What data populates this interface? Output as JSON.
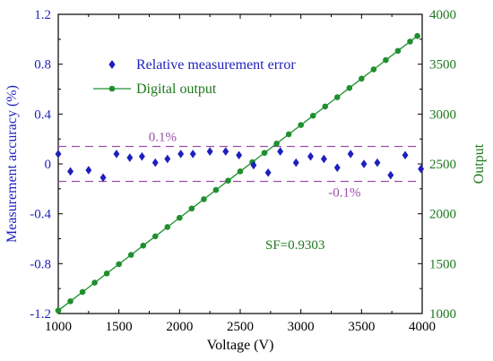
{
  "chart_data": {
    "type": "scatter",
    "xlabel": "Voltage (V)",
    "ylabel_left": "Measurement accuracy (%)",
    "ylabel_right": "Output",
    "xlim": [
      1000,
      4000
    ],
    "ylim_left": [
      -1.2,
      1.2
    ],
    "ylim_right": [
      1000,
      4000
    ],
    "x_ticks": [
      1000,
      1500,
      2000,
      2500,
      3000,
      3500,
      4000
    ],
    "y_left_ticks": [
      -1.2,
      -0.8,
      -0.4,
      0,
      0.4,
      0.8,
      1.2
    ],
    "y_left_tick_labels": [
      "-1.2",
      "-0.8",
      "-0.4",
      "0",
      "0.4",
      "0.8",
      "1.2"
    ],
    "y_right_ticks": [
      1000,
      1500,
      2000,
      2500,
      3000,
      3500,
      4000
    ],
    "colors": {
      "left_axis": "#1f1fbf",
      "right_axis": "#1e7a1e",
      "marker_error": "#1f1fbf",
      "line_output": "#1f8f2f",
      "threshold": "#9b4fa8"
    },
    "legend": {
      "placement": "top-left",
      "entries": [
        {
          "label": "Relative measurement error",
          "marker": "diamond"
        },
        {
          "label": "Digital output",
          "marker": "line-dot"
        }
      ]
    },
    "series": [
      {
        "name": "Relative measurement error",
        "axis": "left",
        "marker": "diamond",
        "x": [
          1000,
          1100,
          1250,
          1370,
          1480,
          1590,
          1690,
          1800,
          1900,
          2010,
          2110,
          2250,
          2380,
          2490,
          2610,
          2730,
          2830,
          2960,
          3080,
          3190,
          3300,
          3410,
          3520,
          3630,
          3740,
          3860,
          3990
        ],
        "y": [
          0.08,
          -0.06,
          -0.05,
          -0.11,
          0.08,
          0.05,
          0.06,
          0.01,
          0.04,
          0.08,
          0.08,
          0.1,
          0.1,
          0.07,
          -0.01,
          -0.07,
          0.1,
          0.01,
          0.06,
          0.04,
          -0.03,
          0.08,
          0.0,
          0.01,
          -0.09,
          0.07,
          -0.04
        ]
      },
      {
        "name": "Digital output",
        "axis": "right",
        "marker": "circle",
        "x": [
          1000,
          1100,
          1200,
          1300,
          1400,
          1500,
          1600,
          1700,
          1800,
          1900,
          2000,
          2100,
          2200,
          2300,
          2400,
          2500,
          2600,
          2700,
          2800,
          2900,
          3000,
          3100,
          3200,
          3300,
          3400,
          3500,
          3600,
          3700,
          3800,
          3900,
          3960
        ],
        "y": [
          1030,
          1123,
          1216,
          1309,
          1402,
          1495,
          1588,
          1681,
          1774,
          1867,
          1960,
          2053,
          2146,
          2239,
          2332,
          2425,
          2518,
          2611,
          2704,
          2797,
          2890,
          2983,
          3076,
          3169,
          3262,
          3355,
          3448,
          3541,
          3634,
          3727,
          3783
        ]
      }
    ],
    "thresholds": [
      {
        "value": 0.14,
        "label": "0.1%"
      },
      {
        "value": -0.14,
        "label": "-0.1%"
      }
    ],
    "annotation": "SF=0.9303",
    "grid": false
  }
}
